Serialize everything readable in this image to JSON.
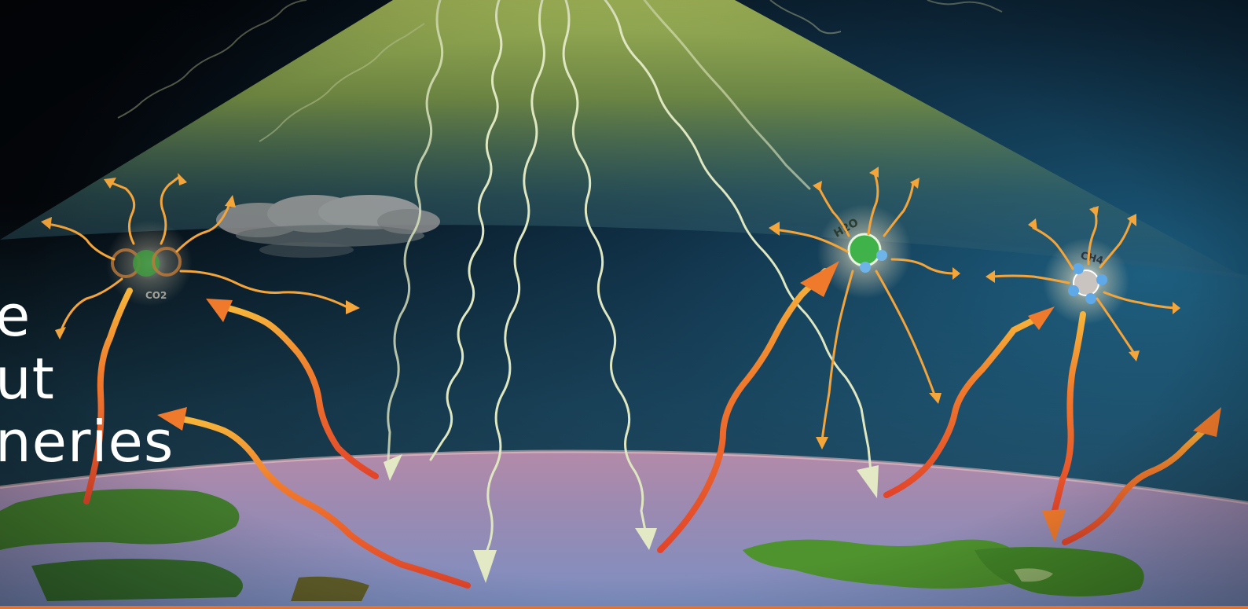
{
  "headline": {
    "lines": [
      "e",
      "ut",
      "neries"
    ]
  },
  "molecules": [
    {
      "name": "co2",
      "label": "CO2",
      "color": "#3f9a3e"
    },
    {
      "name": "h2o",
      "label": "H2O",
      "color": "#3fb24a"
    },
    {
      "name": "ch4",
      "label": "CH4",
      "color": "#c9c4c0"
    }
  ],
  "colors": {
    "background": "#05080d",
    "atmosphere": "#8aa34a",
    "sunlight_wave": "#dfe7c0",
    "infrared_arrow": "#f0732a",
    "earth": "#8f8fb8",
    "land": "#4d8f2e",
    "cloud": "#9a9a9a",
    "bottom_rule": "#e2742f"
  }
}
